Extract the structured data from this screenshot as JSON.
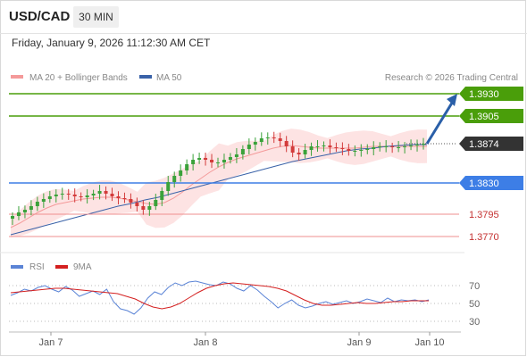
{
  "header": {
    "symbol": "USD/CAD",
    "timeframe": "30 MIN",
    "datetime": "Friday, January 9, 2026 11:12:30 AM CET"
  },
  "legend": {
    "bollinger_label": "MA 20 + Bollinger Bands",
    "ma50_label": "MA 50",
    "credit": "Research © 2026 Trading Central",
    "rsi_label": "RSI",
    "rsi_ma_label": "9MA"
  },
  "colors": {
    "resistance": "#4a9e0a",
    "support": "#3d7ee6",
    "weak_support": "#ef8f8f",
    "arrow": "#2a5fa8",
    "current_price": "#333333",
    "bollinger_fill": "#fde0e0",
    "bollinger_mid": "#f49a9a",
    "ma50": "#3a62a8",
    "candle_up": "#3aa23a",
    "candle_down": "#d33b3b",
    "rsi": "#5b84d6",
    "rsi_ma": "#d42020"
  },
  "chart_data": [
    {
      "type": "candlestick",
      "title": "USD/CAD 30 MIN",
      "x_tick_labels": [
        "Jan 7",
        "Jan 8",
        "Jan 9",
        "Jan 10"
      ],
      "ylim": [
        1.3758,
        1.3938
      ],
      "price_levels": [
        {
          "label": "1.3930",
          "value": 1.393,
          "kind": "resistance"
        },
        {
          "label": "1.3905",
          "value": 1.3905,
          "kind": "resistance"
        },
        {
          "label": "1.3874",
          "value": 1.3874,
          "kind": "current"
        },
        {
          "label": "1.3830",
          "value": 1.383,
          "kind": "support"
        },
        {
          "label": "1.3795",
          "value": 1.3795,
          "kind": "weak_support"
        },
        {
          "label": "1.3770",
          "value": 1.377,
          "kind": "weak_support"
        }
      ],
      "forecast_arrow": {
        "from": 1.3874,
        "to": 1.393
      },
      "close": [
        1.3793,
        1.3797,
        1.38,
        1.3804,
        1.3809,
        1.3812,
        1.3815,
        1.3817,
        1.3818,
        1.3817,
        1.3815,
        1.3814,
        1.3816,
        1.3818,
        1.3821,
        1.3818,
        1.3815,
        1.3813,
        1.3812,
        1.3808,
        1.3804,
        1.38,
        1.3804,
        1.3811,
        1.3821,
        1.3831,
        1.3838,
        1.3844,
        1.3851,
        1.3856,
        1.3858,
        1.3856,
        1.3853,
        1.3853,
        1.3856,
        1.3859,
        1.3862,
        1.3868,
        1.3873,
        1.3876,
        1.388,
        1.3881,
        1.388,
        1.3877,
        1.3871,
        1.3864,
        1.3862,
        1.3867,
        1.3871,
        1.3871,
        1.3872,
        1.387,
        1.3869,
        1.3868,
        1.3866,
        1.3866,
        1.3867,
        1.3868,
        1.387,
        1.3871,
        1.3871,
        1.387,
        1.387,
        1.3871,
        1.3872,
        1.3873,
        1.3874
      ],
      "ma20": [
        1.378,
        1.3785,
        1.3791,
        1.3797,
        1.3802,
        1.3806,
        1.3808,
        1.381,
        1.3812,
        1.3813,
        1.3814,
        1.3814,
        1.3813,
        1.3811,
        1.3809,
        1.3807,
        1.3806,
        1.3808,
        1.3813,
        1.382,
        1.3828,
        1.3835,
        1.3842,
        1.3848,
        1.3853,
        1.3857,
        1.386,
        1.3863,
        1.3866,
        1.3869,
        1.3871,
        1.3872,
        1.3871,
        1.387,
        1.3869,
        1.3869,
        1.3869,
        1.3869,
        1.3869,
        1.387,
        1.3871,
        1.3871,
        1.3871,
        1.3871,
        1.3871,
        1.3871,
        1.3871
      ],
      "ma50": [
        1.3772,
        1.3776,
        1.378,
        1.3784,
        1.3788,
        1.3792,
        1.3796,
        1.38,
        1.3804,
        1.3807,
        1.3811,
        1.3814,
        1.3818,
        1.3822,
        1.3826,
        1.383,
        1.3834,
        1.3838,
        1.3842,
        1.3846,
        1.385,
        1.3854,
        1.3857,
        1.386,
        1.3863,
        1.3866,
        1.3868,
        1.3869,
        1.3871,
        1.3872,
        1.3873,
        1.3873
      ]
    },
    {
      "type": "line",
      "title": "RSI",
      "ylim": [
        20,
        80
      ],
      "y_tick_labels": [
        "70",
        "50",
        "30"
      ],
      "series": [
        {
          "name": "RSI",
          "values": [
            59,
            62,
            66,
            64,
            68,
            70,
            66,
            63,
            69,
            65,
            58,
            61,
            64,
            60,
            66,
            52,
            44,
            42,
            38,
            45,
            56,
            63,
            60,
            68,
            73,
            70,
            74,
            75,
            73,
            71,
            70,
            74,
            72,
            67,
            64,
            70,
            65,
            58,
            52,
            45,
            50,
            54,
            48,
            45,
            47,
            50,
            52,
            49,
            51,
            53,
            50,
            52,
            55,
            53,
            51,
            56,
            52,
            54,
            53,
            54,
            52,
            54
          ]
        },
        {
          "name": "9MA",
          "values": [
            62,
            63,
            64,
            65,
            66,
            67,
            67,
            66,
            65,
            64,
            63,
            62,
            61,
            58,
            55,
            50,
            46,
            44,
            46,
            50,
            56,
            62,
            67,
            70,
            72,
            73,
            72,
            71,
            70,
            69,
            67,
            64,
            59,
            54,
            50,
            48,
            48,
            49,
            50,
            51,
            50,
            50,
            51,
            52,
            52,
            53,
            53,
            53
          ]
        }
      ]
    }
  ]
}
